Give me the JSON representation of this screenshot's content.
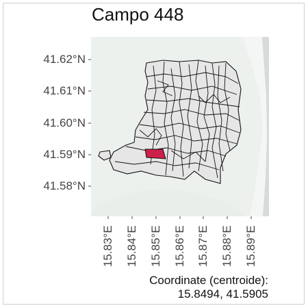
{
  "title": "Campo 448",
  "lat_ticks": [
    "41.62°N",
    "41.61°N",
    "41.60°N",
    "41.59°N",
    "41.58°N"
  ],
  "lon_ticks": [
    "15.83°E",
    "15.84°E",
    "15.85°E",
    "15.86°E",
    "15.87°E",
    "15.88°E",
    "15.89°E"
  ],
  "coordinate": {
    "label": "Coordinate (centroide):",
    "value": "15.8494, 41.5905"
  },
  "colors": {
    "highlight": "#cc1f4a",
    "parcel_fill": "#e6e6e6",
    "basemap": "#edf1ee",
    "coast": "#d6dad8"
  }
}
